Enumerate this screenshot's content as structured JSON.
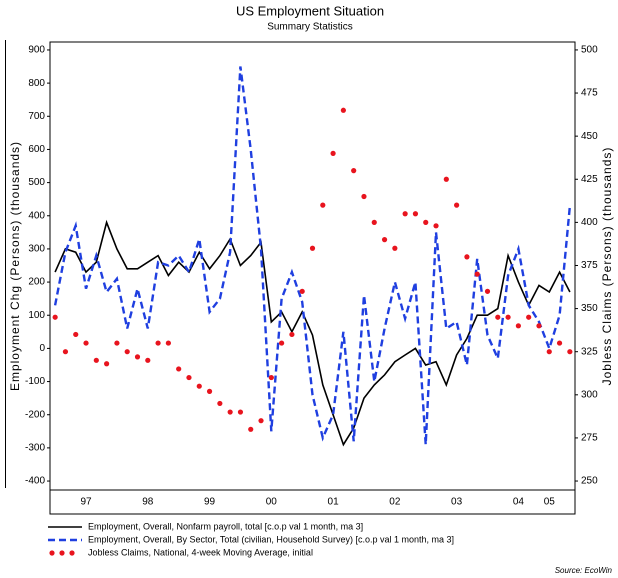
{
  "chart_data": {
    "type": "line",
    "title": "US Employment Situation",
    "subtitle": "Summary Statistics",
    "y_label": "Employment Chg (Persons) (thousands)",
    "y2_label": "Jobless Claims (Persons) (thousands)",
    "source": "Source: EcoWin",
    "categories": [
      null,
      null,
      null,
      "97",
      null,
      null,
      null,
      null,
      null,
      "98",
      null,
      null,
      null,
      null,
      null,
      "99",
      null,
      null,
      null,
      null,
      null,
      "00",
      null,
      null,
      null,
      null,
      null,
      "01",
      null,
      null,
      null,
      null,
      null,
      "02",
      null,
      null,
      null,
      null,
      null,
      "03",
      null,
      null,
      null,
      null,
      null,
      "04",
      null,
      null,
      "05",
      null,
      null
    ],
    "ylim": [
      -427,
      924
    ],
    "yticks": [
      -400,
      -300,
      -200,
      -100,
      0,
      100,
      200,
      300,
      400,
      500,
      600,
      700,
      800,
      900
    ],
    "y2lim": [
      244.8,
      504.6
    ],
    "y2ticks": [
      250,
      275,
      300,
      325,
      350,
      375,
      400,
      425,
      450,
      475,
      500
    ],
    "series": [
      {
        "name": "Employment, Overall, Nonfarm payroll, total [c.o.p val 1 month, ma 3]",
        "color": "#000000",
        "style": "solid",
        "values": [
          230,
          300,
          290,
          230,
          260,
          380,
          300,
          240,
          240,
          260,
          280,
          220,
          260,
          230,
          290,
          240,
          280,
          330,
          250,
          280,
          320,
          80,
          110,
          50,
          110,
          40,
          -110,
          -200,
          -290,
          -240,
          -150,
          -110,
          -80,
          -40,
          -20,
          0,
          -50,
          -40,
          -110,
          -20,
          30,
          100,
          100,
          120,
          280,
          200,
          130,
          190,
          170,
          230,
          170
        ]
      },
      {
        "name": "Employment, Overall, By Sector, Total (civilian, Household Survey) [c.o.p val 1 month, ma 3]",
        "color": "#1f3fe0",
        "style": "dashed",
        "values": [
          130,
          290,
          370,
          180,
          280,
          170,
          210,
          60,
          180,
          60,
          260,
          250,
          280,
          230,
          330,
          110,
          150,
          290,
          850,
          600,
          300,
          -250,
          150,
          230,
          140,
          -140,
          -270,
          -200,
          50,
          -280,
          160,
          -100,
          60,
          200,
          90,
          200,
          -290,
          350,
          60,
          80,
          -50,
          270,
          40,
          -30,
          220,
          300,
          130,
          80,
          0,
          100,
          430
        ]
      },
      {
        "name": "Jobless Claims, National, 4-week Moving Average, initial",
        "color": "#e8141e",
        "style": "dots",
        "axis": "y2",
        "values": [
          345,
          325,
          335,
          330,
          320,
          318,
          330,
          325,
          322,
          320,
          330,
          330,
          315,
          310,
          305,
          302,
          295,
          290,
          290,
          280,
          285,
          310,
          330,
          335,
          360,
          385,
          410,
          440,
          465,
          430,
          415,
          400,
          390,
          385,
          405,
          405,
          400,
          398,
          425,
          410,
          380,
          370,
          360,
          345,
          345,
          340,
          345,
          340,
          325,
          330,
          325
        ]
      }
    ]
  }
}
